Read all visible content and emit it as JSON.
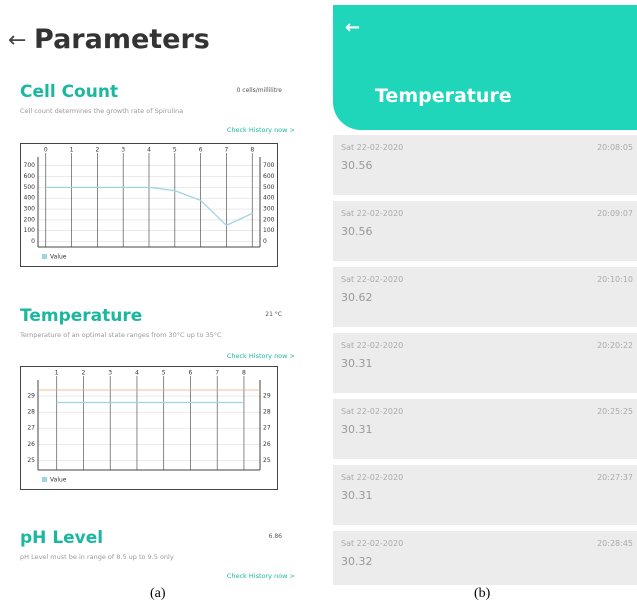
{
  "panel_a": {
    "title": "Parameters",
    "sections": [
      {
        "heading": "Cell Count",
        "reading": "0 cells/millilitre",
        "description": "Cell count determines the growth rate of Spirulina",
        "link": "Check History now >",
        "chart": {
          "legend": "Value",
          "xlim": [
            -0.3,
            8.3
          ],
          "xticks": [
            0,
            1,
            2,
            3,
            4,
            5,
            6,
            7,
            8
          ],
          "ylim": [
            -50,
            780
          ],
          "yticks": [
            0,
            100,
            200,
            300,
            400,
            500,
            600,
            700
          ],
          "x": [
            0,
            1,
            2,
            3,
            4,
            5,
            6,
            7,
            8
          ],
          "values": [
            500,
            500,
            500,
            500,
            500,
            470,
            380,
            150,
            260
          ]
        }
      },
      {
        "heading": "Temperature",
        "reading": "21 °C",
        "description": "Temperature of an optimal state ranges from 30°C up to 35°C",
        "link": "Check History now >",
        "chart": {
          "legend": "Value",
          "xlim": [
            0.3,
            8.6
          ],
          "xticks": [
            1,
            2,
            3,
            4,
            5,
            6,
            7,
            8
          ],
          "ylim": [
            24.4,
            30
          ],
          "yticks": [
            25,
            26,
            27,
            28,
            29
          ],
          "x": [
            1,
            2,
            3,
            4,
            5,
            6,
            7,
            8
          ],
          "values": [
            28.6,
            28.6,
            28.6,
            28.6,
            28.6,
            28.6,
            28.6,
            28.6
          ]
        }
      },
      {
        "heading": "pH Level",
        "reading": "6.86",
        "description": "pH Level must be in range of 8.5 up to 9.5 only",
        "link": "Check History now >"
      }
    ]
  },
  "panel_b": {
    "title": "Temperature",
    "rows": [
      {
        "date": "Sat 22-02-2020",
        "time": "20:08:05",
        "value": "30.56"
      },
      {
        "date": "Sat 22-02-2020",
        "time": "20:09:07",
        "value": "30.56"
      },
      {
        "date": "Sat 22-02-2020",
        "time": "20:10:10",
        "value": "30.62"
      },
      {
        "date": "Sat 22-02-2020",
        "time": "20:20:22",
        "value": "30.31"
      },
      {
        "date": "Sat 22-02-2020",
        "time": "20:25:25",
        "value": "30.31"
      },
      {
        "date": "Sat 22-02-2020",
        "time": "20:27:37",
        "value": "30.31"
      },
      {
        "date": "Sat 22-02-2020",
        "time": "20:28:45",
        "value": "30.32"
      }
    ]
  },
  "captions": [
    "(a)",
    "(b)"
  ]
}
